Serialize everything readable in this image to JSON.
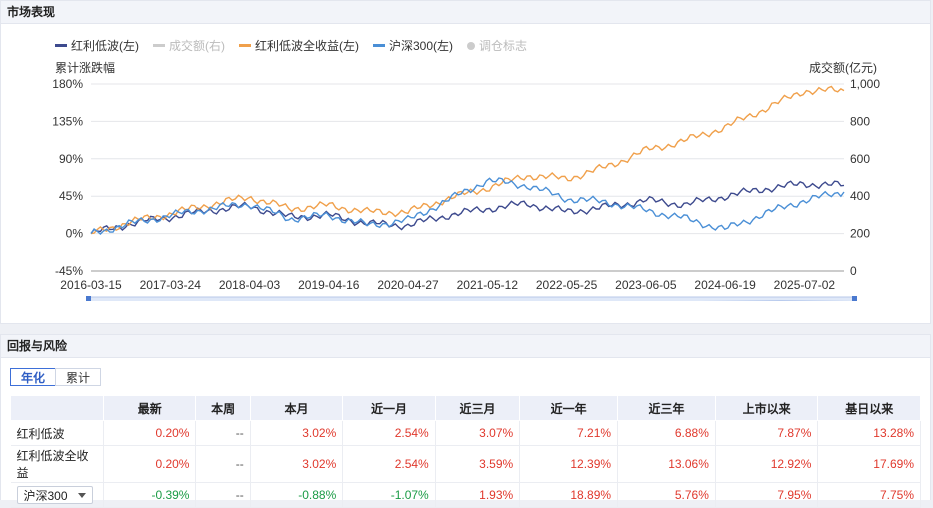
{
  "market": {
    "title": "市场表现",
    "legend": [
      {
        "label": "红利低波(左)",
        "color": "#3d4a8e",
        "active": true
      },
      {
        "label": "成交额(右)",
        "color": "#cccccc",
        "active": false
      },
      {
        "label": "红利低波全收益(左)",
        "color": "#f0a04b",
        "active": true
      },
      {
        "label": "沪深300(左)",
        "color": "#4a8fd6",
        "active": true
      },
      {
        "label": "调仓标志",
        "color": "#cccccc",
        "active": false
      }
    ],
    "y_left_label": "累计涨跌幅",
    "y_right_label": "成交额(亿元)"
  },
  "chart_data": {
    "type": "line",
    "x": [
      "2016-03-15",
      "2016-09-15",
      "2017-03-24",
      "2017-09-24",
      "2018-04-03",
      "2018-10-03",
      "2019-04-16",
      "2019-10-16",
      "2020-04-27",
      "2020-10-27",
      "2021-05-12",
      "2021-11-12",
      "2022-05-25",
      "2022-11-25",
      "2023-06-05",
      "2023-12-05",
      "2024-06-19",
      "2024-12-19",
      "2025-07-02",
      "2025-12-31"
    ],
    "x_ticks": [
      "2016-03-15",
      "2017-03-24",
      "2018-04-03",
      "2019-04-16",
      "2020-04-27",
      "2021-05-12",
      "2022-05-25",
      "2023-06-05",
      "2024-06-19",
      "2025-07-02"
    ],
    "series": [
      {
        "name": "红利低波(左)",
        "color": "#3d4a8e",
        "values": [
          0,
          12,
          20,
          28,
          33,
          20,
          22,
          12,
          10,
          22,
          30,
          36,
          26,
          32,
          40,
          35,
          45,
          54,
          60,
          58
        ]
      },
      {
        "name": "红利低波全收益(左)",
        "color": "#f0a04b",
        "values": [
          0,
          14,
          24,
          35,
          44,
          30,
          34,
          26,
          26,
          42,
          55,
          70,
          66,
          80,
          100,
          112,
          128,
          150,
          172,
          172
        ]
      },
      {
        "name": "沪深300(左)",
        "color": "#4a8fd6",
        "values": [
          0,
          12,
          22,
          30,
          36,
          18,
          22,
          10,
          16,
          40,
          64,
          58,
          42,
          38,
          28,
          18,
          5,
          24,
          40,
          50
        ]
      }
    ],
    "y_left": {
      "ticks": [
        "180%",
        "135%",
        "90%",
        "45%",
        "0%",
        "-45%"
      ],
      "min": -45,
      "max": 180
    },
    "y_right": {
      "ticks": [
        "1,000",
        "800",
        "600",
        "400",
        "200",
        "0"
      ],
      "min": 0,
      "max": 1000
    }
  },
  "returns": {
    "title": "回报与风险",
    "tabs": [
      "年化",
      "累计"
    ],
    "active_tab": "年化",
    "headers": [
      "",
      "最新",
      "本周",
      "本月",
      "近一月",
      "近三月",
      "近一年",
      "近三年",
      "上市以来",
      "基日以来"
    ],
    "rows": [
      {
        "name": "红利低波",
        "cells": [
          "0.20%",
          "--",
          "3.02%",
          "2.54%",
          "3.07%",
          "7.21%",
          "6.88%",
          "7.87%",
          "13.28%"
        ]
      },
      {
        "name": "红利低波全收益",
        "cells": [
          "0.20%",
          "--",
          "3.02%",
          "2.54%",
          "3.59%",
          "12.39%",
          "13.06%",
          "12.92%",
          "17.69%"
        ]
      },
      {
        "name": "沪深300",
        "select": true,
        "cells": [
          "-0.39%",
          "--",
          "-0.88%",
          "-1.07%",
          "1.93%",
          "18.89%",
          "5.76%",
          "7.95%",
          "7.75%"
        ]
      }
    ]
  }
}
